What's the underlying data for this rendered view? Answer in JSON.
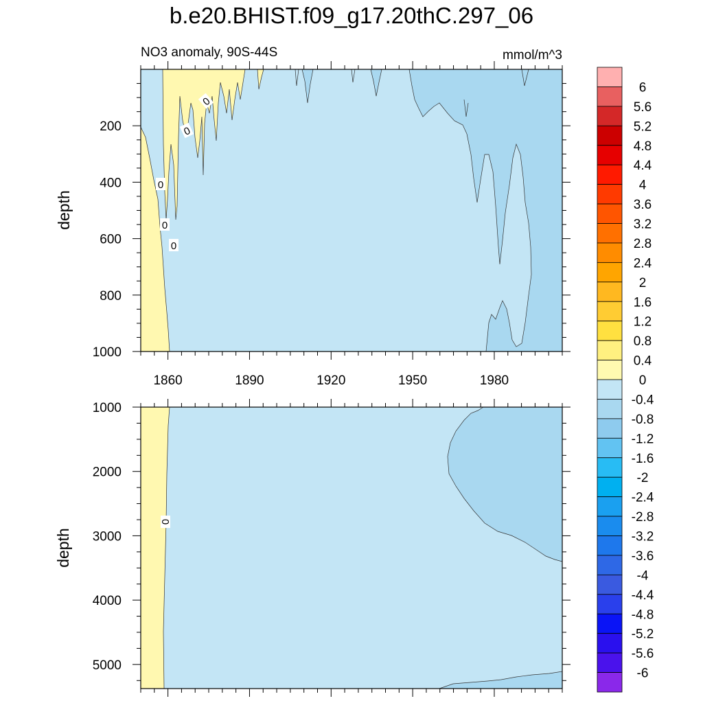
{
  "figure": {
    "title": "b.e20.BHIST.f09_g17.20thC.297_06",
    "subtitle_left": "NO3 anomaly, 90S-44S",
    "subtitle_right": "mmol/m^3"
  },
  "chart_data": [
    {
      "type": "contour",
      "panel": "upper",
      "xlabel": "",
      "ylabel": "depth",
      "xlim": [
        1850,
        2005
      ],
      "ylim": [
        0,
        1000
      ],
      "y_reversed": true,
      "x_ticks": [
        1860,
        1890,
        1920,
        1950,
        1980
      ],
      "x_tick_labels": [
        "1860",
        "1890",
        "1920",
        "1950",
        "1980"
      ],
      "y_ticks": [
        200,
        400,
        600,
        800,
        1000
      ],
      "y_tick_labels": [
        "200",
        "400",
        "600",
        "800",
        "1000"
      ],
      "contour_labels": [
        "0",
        "0",
        "0",
        "0",
        "0",
        "0"
      ],
      "regions": [
        {
          "level": "-0.4 to 0",
          "color": "#c3e5f5"
        },
        {
          "level": "0 to 0.4",
          "color": "#fff8b0"
        },
        {
          "level": "-0.8 to -0.4",
          "color": "#a9d8f0"
        }
      ]
    },
    {
      "type": "contour",
      "panel": "lower",
      "xlabel": "",
      "ylabel": "depth",
      "xlim": [
        1850,
        2005
      ],
      "ylim": [
        1000,
        5375
      ],
      "y_reversed": true,
      "x_ticks": [
        1860,
        1890,
        1920,
        1950,
        1980
      ],
      "y_ticks": [
        1000,
        2000,
        3000,
        4000,
        5000
      ],
      "y_tick_labels": [
        "1000",
        "2000",
        "3000",
        "4000",
        "5000"
      ],
      "contour_labels": [
        "0"
      ],
      "regions": [
        {
          "level": "-0.4 to 0",
          "color": "#c3e5f5"
        },
        {
          "level": "0 to 0.4",
          "color": "#fff8b0"
        },
        {
          "level": "-0.8 to -0.4",
          "color": "#a9d8f0"
        }
      ]
    },
    {
      "type": "colorbar",
      "labels": [
        "6",
        "5.6",
        "5.2",
        "4.8",
        "4.4",
        "4",
        "3.6",
        "3.2",
        "2.8",
        "2.4",
        "2",
        "1.6",
        "1.2",
        "0.8",
        "0.4",
        "0",
        "-0.4",
        "-0.8",
        "-1.2",
        "-1.6",
        "-2",
        "-2.4",
        "-2.8",
        "-3.2",
        "-3.6",
        "-4",
        "-4.4",
        "-4.8",
        "-5.2",
        "-5.6",
        "-6"
      ],
      "colors": [
        "#ffb0b0",
        "#e86060",
        "#d42828",
        "#cc0000",
        "#e60000",
        "#ff1a00",
        "#ff3a00",
        "#ff5500",
        "#ff7000",
        "#ff8c00",
        "#ffa500",
        "#ffb820",
        "#ffcc33",
        "#ffe040",
        "#fff080",
        "#fffab0",
        "#c3e5f5",
        "#a9d8f0",
        "#8ecbee",
        "#62c3f2",
        "#28bcf4",
        "#00b0f0",
        "#1aa0f0",
        "#1a8cee",
        "#1e78ec",
        "#2e68e6",
        "#3a5ae0",
        "#2a40ec",
        "#0a14f6",
        "#2a10ee",
        "#4a12ec",
        "#8a28ea"
      ]
    }
  ]
}
